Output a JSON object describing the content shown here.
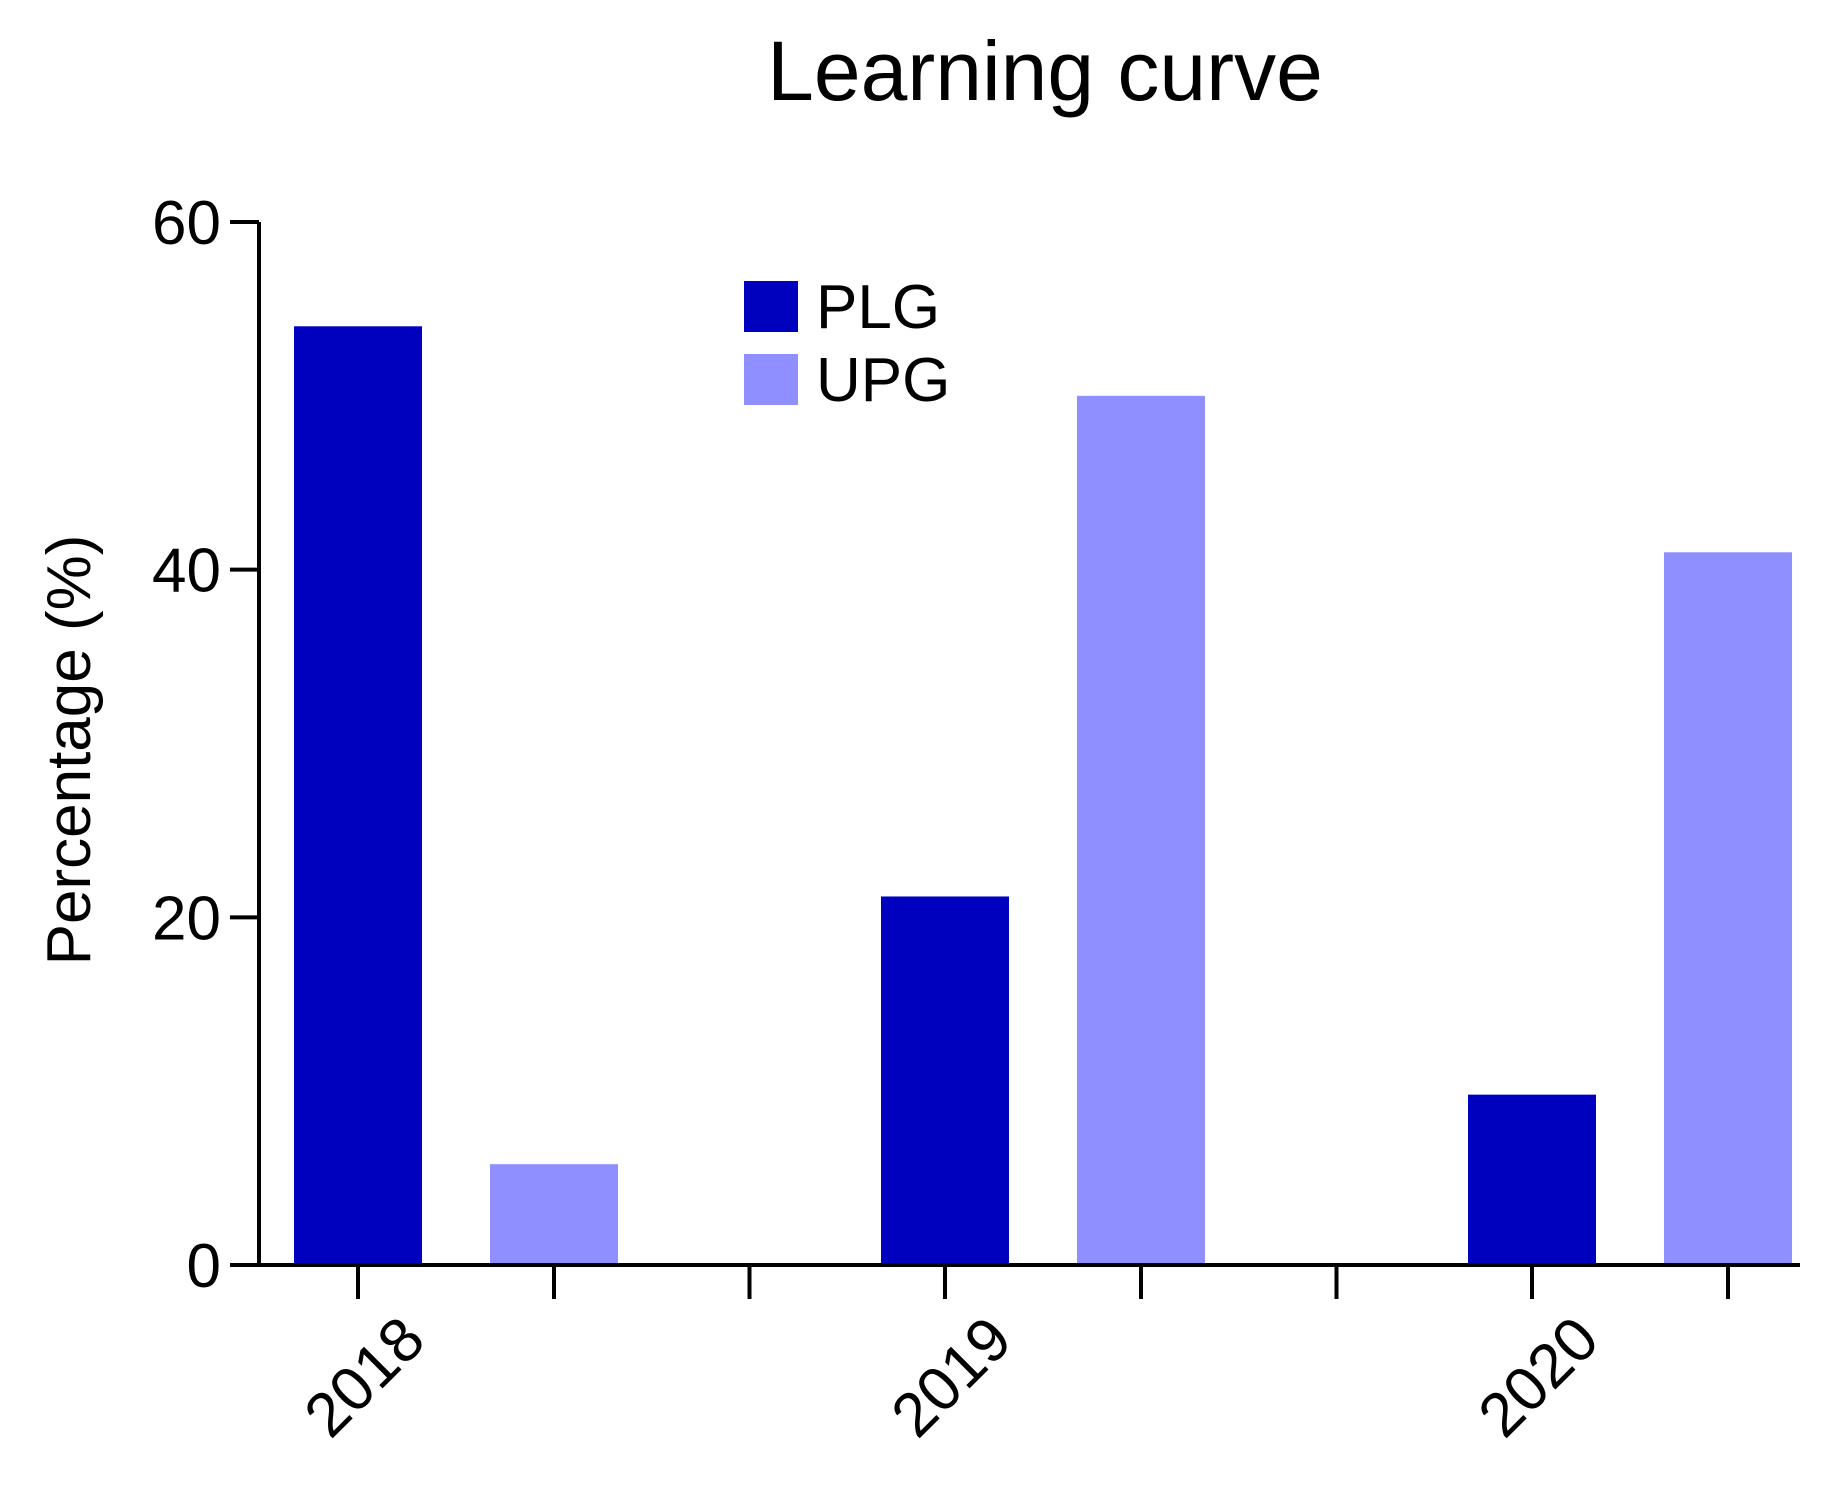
{
  "chart_data": {
    "type": "bar",
    "title": "Learning curve",
    "xlabel": "",
    "ylabel": "Percentage  (%)",
    "categories": [
      "2018",
      "2019",
      "2020"
    ],
    "series": [
      {
        "name": "PLG",
        "color": "#0000BF",
        "values": [
          54,
          21.2,
          9.8
        ]
      },
      {
        "name": "UPG",
        "color": "#8F8FFF",
        "values": [
          5.8,
          50,
          41
        ]
      }
    ],
    "yticks": [
      "0",
      "20",
      "40",
      "60"
    ],
    "ylim": [
      0,
      60
    ],
    "grid": false,
    "legend_position": "top-center"
  }
}
